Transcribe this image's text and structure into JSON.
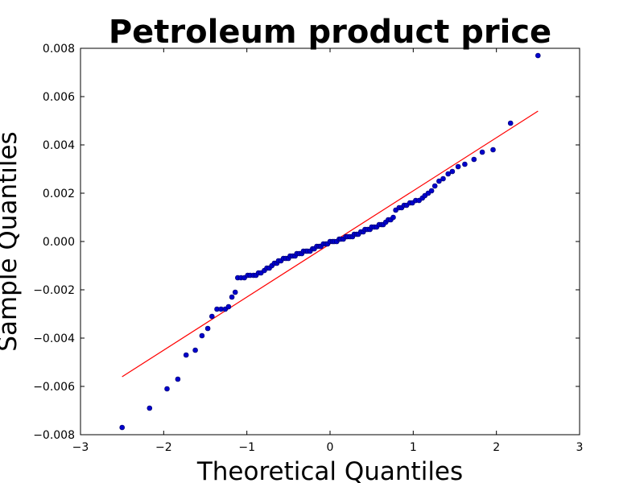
{
  "chart_data": {
    "type": "scatter",
    "title": "Petroleum product price",
    "xlabel": "Theoretical Quantiles",
    "ylabel": "Sample Quantiles",
    "xlim": [
      -3,
      3
    ],
    "ylim": [
      -0.008,
      0.008
    ],
    "x_ticks": [
      {
        "value": -3,
        "label": "−3"
      },
      {
        "value": -2,
        "label": "−2"
      },
      {
        "value": -1,
        "label": "−1"
      },
      {
        "value": 0,
        "label": "0"
      },
      {
        "value": 1,
        "label": "1"
      },
      {
        "value": 2,
        "label": "2"
      },
      {
        "value": 3,
        "label": "3"
      }
    ],
    "y_ticks": [
      {
        "value": -0.008,
        "label": "−0.008"
      },
      {
        "value": -0.006,
        "label": "−0.006"
      },
      {
        "value": -0.004,
        "label": "−0.004"
      },
      {
        "value": -0.002,
        "label": "−0.002"
      },
      {
        "value": 0.0,
        "label": "0.000"
      },
      {
        "value": 0.002,
        "label": "0.002"
      },
      {
        "value": 0.004,
        "label": "0.004"
      },
      {
        "value": 0.006,
        "label": "0.006"
      },
      {
        "value": 0.008,
        "label": "0.008"
      }
    ],
    "grid": false,
    "points_color": "#0000cc",
    "points_edge_color": "#000066",
    "line_color": "#ff0000",
    "reference_line": {
      "x": [
        -2.5,
        2.5
      ],
      "y": [
        -0.0056,
        0.0054
      ]
    },
    "points": [
      [
        -2.5,
        -0.0077
      ],
      [
        -2.17,
        -0.0069
      ],
      [
        -1.96,
        -0.0061
      ],
      [
        -1.83,
        -0.0057
      ],
      [
        -1.73,
        -0.0047
      ],
      [
        -1.62,
        -0.0045
      ],
      [
        -1.54,
        -0.0039
      ],
      [
        -1.47,
        -0.0036
      ],
      [
        -1.42,
        -0.0031
      ],
      [
        -1.36,
        -0.0028
      ],
      [
        -1.31,
        -0.0028
      ],
      [
        -1.26,
        -0.0028
      ],
      [
        -1.22,
        -0.0027
      ],
      [
        -1.18,
        -0.0023
      ],
      [
        -1.14,
        -0.0021
      ],
      [
        -1.11,
        -0.0015
      ],
      [
        -1.07,
        -0.0015
      ],
      [
        -1.03,
        -0.0015
      ],
      [
        -0.99,
        -0.0014
      ],
      [
        -0.96,
        -0.0014
      ],
      [
        -0.92,
        -0.0014
      ],
      [
        -0.89,
        -0.0014
      ],
      [
        -0.86,
        -0.0013
      ],
      [
        -0.83,
        -0.0013
      ],
      [
        -0.79,
        -0.0012
      ],
      [
        -0.76,
        -0.0011
      ],
      [
        -0.73,
        -0.0011
      ],
      [
        -0.7,
        -0.001
      ],
      [
        -0.67,
        -0.0009
      ],
      [
        -0.64,
        -0.0009
      ],
      [
        -0.62,
        -0.0008
      ],
      [
        -0.59,
        -0.0008
      ],
      [
        -0.56,
        -0.0007
      ],
      [
        -0.53,
        -0.0007
      ],
      [
        -0.5,
        -0.0007
      ],
      [
        -0.48,
        -0.0006
      ],
      [
        -0.45,
        -0.0006
      ],
      [
        -0.42,
        -0.0006
      ],
      [
        -0.4,
        -0.0005
      ],
      [
        -0.37,
        -0.0005
      ],
      [
        -0.34,
        -0.0005
      ],
      [
        -0.32,
        -0.0004
      ],
      [
        -0.29,
        -0.0004
      ],
      [
        -0.27,
        -0.0004
      ],
      [
        -0.24,
        -0.0004
      ],
      [
        -0.21,
        -0.0003
      ],
      [
        -0.19,
        -0.0003
      ],
      [
        -0.16,
        -0.0002
      ],
      [
        -0.13,
        -0.0002
      ],
      [
        -0.11,
        -0.0002
      ],
      [
        -0.08,
        -0.0001
      ],
      [
        -0.05,
        -0.0001
      ],
      [
        -0.03,
        -0.0001
      ],
      [
        0.0,
        0.0
      ],
      [
        0.03,
        0.0
      ],
      [
        0.05,
        0.0
      ],
      [
        0.08,
        0.0
      ],
      [
        0.11,
        0.0001
      ],
      [
        0.13,
        0.0001
      ],
      [
        0.16,
        0.0001
      ],
      [
        0.19,
        0.0002
      ],
      [
        0.21,
        0.0002
      ],
      [
        0.24,
        0.0002
      ],
      [
        0.27,
        0.0002
      ],
      [
        0.29,
        0.0003
      ],
      [
        0.32,
        0.0003
      ],
      [
        0.34,
        0.0003
      ],
      [
        0.37,
        0.0004
      ],
      [
        0.4,
        0.0004
      ],
      [
        0.42,
        0.0005
      ],
      [
        0.45,
        0.0005
      ],
      [
        0.48,
        0.0005
      ],
      [
        0.5,
        0.0006
      ],
      [
        0.53,
        0.0006
      ],
      [
        0.56,
        0.0006
      ],
      [
        0.59,
        0.0007
      ],
      [
        0.62,
        0.0007
      ],
      [
        0.64,
        0.0007
      ],
      [
        0.67,
        0.0008
      ],
      [
        0.7,
        0.0009
      ],
      [
        0.73,
        0.0009
      ],
      [
        0.76,
        0.001
      ],
      [
        0.79,
        0.0013
      ],
      [
        0.83,
        0.0014
      ],
      [
        0.86,
        0.0014
      ],
      [
        0.89,
        0.0015
      ],
      [
        0.92,
        0.0015
      ],
      [
        0.96,
        0.0016
      ],
      [
        0.99,
        0.0016
      ],
      [
        1.03,
        0.0017
      ],
      [
        1.07,
        0.0017
      ],
      [
        1.11,
        0.0018
      ],
      [
        1.14,
        0.0019
      ],
      [
        1.18,
        0.002
      ],
      [
        1.22,
        0.0021
      ],
      [
        1.26,
        0.0023
      ],
      [
        1.31,
        0.0025
      ],
      [
        1.36,
        0.0026
      ],
      [
        1.42,
        0.0028
      ],
      [
        1.47,
        0.0029
      ],
      [
        1.54,
        0.0031
      ],
      [
        1.62,
        0.0032
      ],
      [
        1.73,
        0.0034
      ],
      [
        1.83,
        0.0037
      ],
      [
        1.96,
        0.0038
      ],
      [
        2.17,
        0.0049
      ],
      [
        2.5,
        0.0077
      ]
    ]
  }
}
